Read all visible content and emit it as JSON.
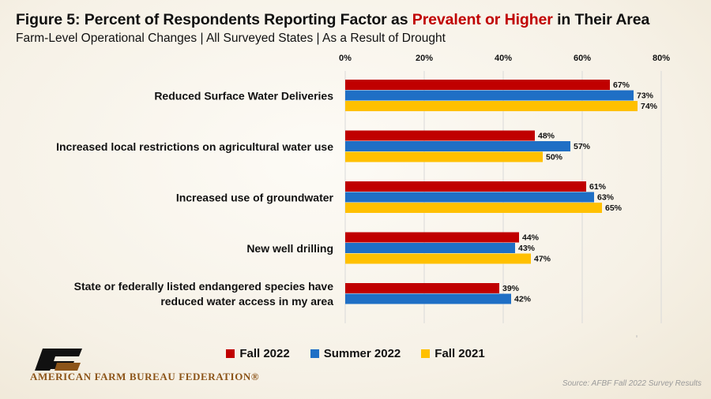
{
  "figure": {
    "title_prefix": "Figure 5: Percent of Respondents Reporting Factor as ",
    "title_highlight": "Prevalent or Higher",
    "title_suffix": " in Their Area",
    "subtitle": "Farm-Level Operational Changes | All Surveyed States | As a Result of Drought"
  },
  "chart_data": {
    "type": "bar",
    "orientation": "horizontal",
    "categories": [
      [
        "Reduced Surface Water Deliveries"
      ],
      [
        "Increased local restrictions on agricultural water use"
      ],
      [
        "Increased use of groundwater"
      ],
      [
        "New well drilling"
      ],
      [
        "State or federally listed endangered species have",
        "reduced water access in my area"
      ]
    ],
    "series": [
      {
        "name": "Fall 2022",
        "color": "#c00000",
        "values": [
          67,
          48,
          61,
          44,
          39
        ]
      },
      {
        "name": "Summer 2022",
        "color": "#1f6fc5",
        "values": [
          73,
          57,
          63,
          43,
          42
        ]
      },
      {
        "name": "Fall 2021",
        "color": "#ffc000",
        "values": [
          74,
          50,
          65,
          47,
          null
        ]
      }
    ],
    "xlim": [
      0,
      80
    ],
    "ticks": [
      "0%",
      "20%",
      "40%",
      "60%",
      "80%"
    ],
    "tick_values": [
      0,
      20,
      40,
      60,
      80
    ],
    "value_suffix": "%",
    "xaxis_position": "top",
    "grid": true,
    "legend_position": "bottom"
  },
  "legend": {
    "items": [
      {
        "label": "Fall 2022",
        "color": "#c00000"
      },
      {
        "label": "Summer 2022",
        "color": "#1f6fc5"
      },
      {
        "label": "Fall 2021",
        "color": "#ffc000"
      }
    ]
  },
  "logo": {
    "text": "AMERICAN FARM BUREAU FEDERATION®",
    "icon": "afbf-logo-icon"
  },
  "source": "Source: AFBF Fall 2022 Survey Results"
}
